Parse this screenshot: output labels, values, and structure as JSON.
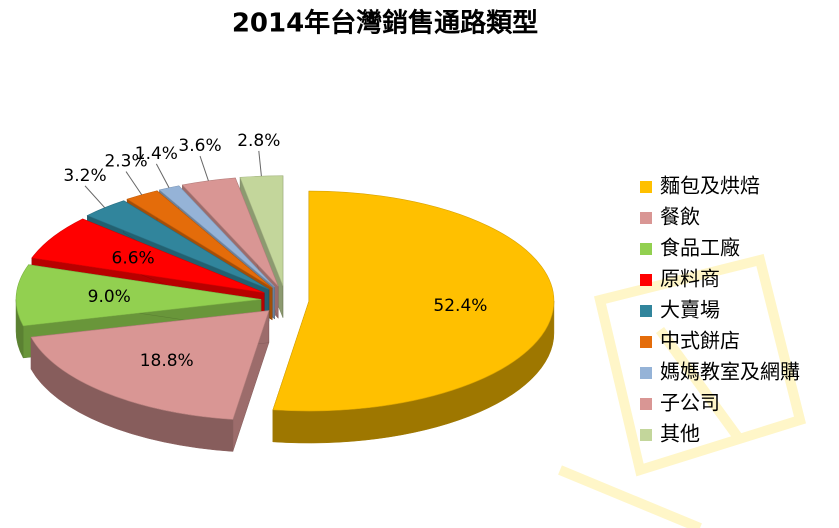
{
  "chart_data": {
    "type": "pie3d",
    "title": "2014年台灣銷售通路類型",
    "categories": [
      "麵包及烘焙",
      "餐飲",
      "食品工廠",
      "原料商",
      "大賣場",
      "中式餅店",
      "媽媽教室及網購",
      "子公司",
      "其他"
    ],
    "values": [
      52.4,
      18.8,
      9.0,
      6.6,
      3.2,
      2.3,
      1.4,
      3.6,
      2.8
    ],
    "value_labels": [
      "52.4%",
      "18.8%",
      "9.0%",
      "6.6%",
      "3.2%",
      "2.3%",
      "1.4%",
      "3.6%",
      "2.8%"
    ],
    "colors": [
      "#ffc000",
      "#d99694",
      "#92d050",
      "#ff0000",
      "#31859c",
      "#e46c0a",
      "#95b3d7",
      "#d99694",
      "#c3d69b"
    ],
    "legend": "right"
  }
}
